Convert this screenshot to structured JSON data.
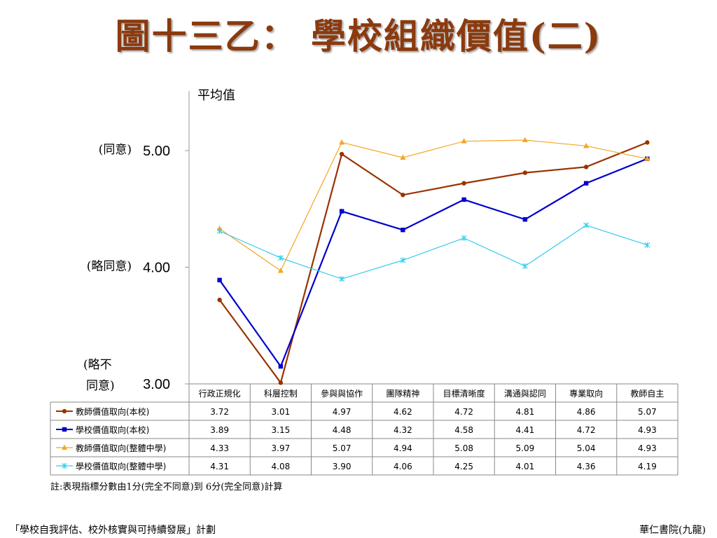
{
  "title": "圖十三乙： 學校組織價值(二)",
  "note": "註:表現指標分數由1分(完全不同意)到 6分(完全同意)計算",
  "footer": {
    "left": "「學校自我評估、校外核實與可持續發展」計劃",
    "right": "華仁書院(九龍)"
  },
  "chart_data": {
    "type": "line",
    "ylabel": "平均值",
    "ylim": [
      3.0,
      5.0
    ],
    "yticks": [
      {
        "value": 5.0,
        "label": "5.00",
        "desc": "(同意)"
      },
      {
        "value": 4.0,
        "label": "4.00",
        "desc": "(略同意)"
      },
      {
        "value": 3.0,
        "label": "3.00",
        "desc": "(略不同意)"
      }
    ],
    "categories": [
      "行政正規化",
      "科層控制",
      "參與與協作",
      "團隊精神",
      "目標清晰度",
      "溝通與認同",
      "專業取向",
      "教師自主"
    ],
    "series": [
      {
        "name": "教師價值取向(本校)",
        "color": "#993300",
        "marker": "circle",
        "values": [
          3.72,
          3.01,
          4.97,
          4.62,
          4.72,
          4.81,
          4.86,
          5.07
        ]
      },
      {
        "name": "學校價值取向(本校)",
        "color": "#0000CC",
        "marker": "square",
        "values": [
          3.89,
          3.15,
          4.48,
          4.32,
          4.58,
          4.41,
          4.72,
          4.93
        ]
      },
      {
        "name": "教師價值取向(整體中學)",
        "color": "#F5A623",
        "marker": "triangle",
        "values": [
          4.33,
          3.97,
          5.07,
          4.94,
          5.08,
          5.09,
          5.04,
          4.93
        ]
      },
      {
        "name": "學校價值取向(整體中學)",
        "color": "#33CCEE",
        "marker": "star",
        "values": [
          4.31,
          4.08,
          3.9,
          4.06,
          4.25,
          4.01,
          4.36,
          4.19
        ]
      }
    ]
  }
}
